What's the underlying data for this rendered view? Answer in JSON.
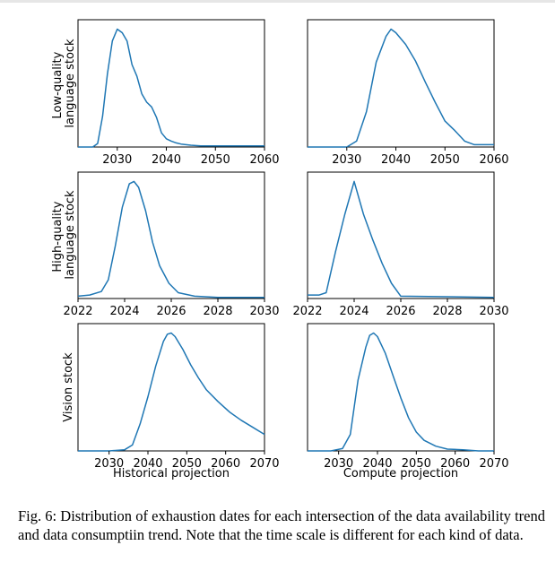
{
  "caption": "Fig. 6: Distribution of exhaustion dates for each intersection of the data availability trend and data consumptiin trend. Note that the time scale is different for each kind of data.",
  "chart_data": [
    {
      "type": "line",
      "ylabel": [
        "Low-quality",
        "language stock"
      ],
      "xlabel": "",
      "xlim": [
        2022,
        2060
      ],
      "xticks": [
        2030,
        2040,
        2050,
        2060
      ],
      "ylim": [
        0,
        1.08
      ],
      "x": [
        2022,
        2025,
        2026,
        2027,
        2028,
        2029,
        2030,
        2031,
        2032,
        2033,
        2034,
        2035,
        2036,
        2037,
        2038,
        2039,
        2040,
        2041,
        2042,
        2043,
        2045,
        2047,
        2050,
        2055,
        2060
      ],
      "values": [
        0.0,
        0.0,
        0.03,
        0.26,
        0.62,
        0.9,
        1.0,
        0.97,
        0.9,
        0.7,
        0.6,
        0.45,
        0.38,
        0.34,
        0.25,
        0.12,
        0.07,
        0.05,
        0.035,
        0.025,
        0.015,
        0.01,
        0.01,
        0.01,
        0.01
      ]
    },
    {
      "type": "line",
      "ylabel": "",
      "xlabel": "",
      "xlim": [
        2022,
        2060
      ],
      "xticks": [
        2030,
        2040,
        2050,
        2060
      ],
      "ylim": [
        0,
        1.08
      ],
      "x": [
        2022,
        2030,
        2032,
        2034,
        2036,
        2038,
        2039,
        2040,
        2042,
        2044,
        2046,
        2048,
        2050,
        2052,
        2054,
        2056,
        2060
      ],
      "values": [
        0.0,
        0.0,
        0.05,
        0.3,
        0.72,
        0.94,
        1.0,
        0.97,
        0.87,
        0.73,
        0.55,
        0.38,
        0.22,
        0.14,
        0.05,
        0.02,
        0.02
      ]
    },
    {
      "type": "line",
      "ylabel": [
        "High-quality",
        "language stock"
      ],
      "xlabel": "",
      "xlim": [
        2022,
        2030
      ],
      "xticks": [
        2022,
        2024,
        2026,
        2028,
        2030
      ],
      "ylim": [
        0,
        1.08
      ],
      "x": [
        2022,
        2022.5,
        2023,
        2023.3,
        2023.6,
        2023.9,
        2024.2,
        2024.4,
        2024.6,
        2024.9,
        2025.2,
        2025.5,
        2025.9,
        2026.3,
        2027,
        2028,
        2030
      ],
      "values": [
        0.02,
        0.03,
        0.06,
        0.16,
        0.45,
        0.78,
        0.98,
        1.0,
        0.95,
        0.75,
        0.48,
        0.28,
        0.13,
        0.05,
        0.02,
        0.01,
        0.01
      ]
    },
    {
      "type": "line",
      "ylabel": "",
      "xlabel": "",
      "xlim": [
        2022,
        2030
      ],
      "xticks": [
        2022,
        2024,
        2026,
        2028,
        2030
      ],
      "ylim": [
        0,
        1.08
      ],
      "x": [
        2022,
        2022.5,
        2022.8,
        2023.2,
        2023.6,
        2024.0,
        2024.4,
        2024.8,
        2025.2,
        2025.6,
        2026.0,
        2030
      ],
      "values": [
        0.03,
        0.03,
        0.05,
        0.4,
        0.72,
        1.0,
        0.72,
        0.5,
        0.3,
        0.13,
        0.02,
        0.01
      ]
    },
    {
      "type": "line",
      "ylabel": "Vision stock",
      "xlabel": "Historical projection",
      "xlim": [
        2022,
        2070
      ],
      "xticks": [
        2030,
        2040,
        2050,
        2060,
        2070
      ],
      "ylim": [
        0,
        1.08
      ],
      "x": [
        2022,
        2030,
        2034,
        2036,
        2038,
        2040,
        2042,
        2044,
        2045,
        2046,
        2047,
        2049,
        2051,
        2053,
        2055,
        2058,
        2061,
        2064,
        2067,
        2070
      ],
      "values": [
        0.0,
        0.0,
        0.01,
        0.05,
        0.23,
        0.46,
        0.72,
        0.93,
        0.99,
        1.0,
        0.97,
        0.86,
        0.73,
        0.62,
        0.52,
        0.42,
        0.33,
        0.26,
        0.2,
        0.14
      ]
    },
    {
      "type": "line",
      "ylabel": "",
      "xlabel": "Compute projection",
      "xlim": [
        2022,
        2070
      ],
      "xticks": [
        2030,
        2040,
        2050,
        2060,
        2070
      ],
      "ylim": [
        0,
        1.08
      ],
      "x": [
        2022,
        2028,
        2031,
        2033,
        2035,
        2037,
        2038,
        2039,
        2040,
        2042,
        2044,
        2046,
        2048,
        2050,
        2052,
        2055,
        2058,
        2062,
        2066,
        2070
      ],
      "values": [
        0.0,
        0.0,
        0.02,
        0.14,
        0.6,
        0.88,
        0.98,
        1.0,
        0.97,
        0.83,
        0.64,
        0.45,
        0.28,
        0.16,
        0.09,
        0.04,
        0.015,
        0.01,
        0.0,
        0.0
      ]
    }
  ]
}
